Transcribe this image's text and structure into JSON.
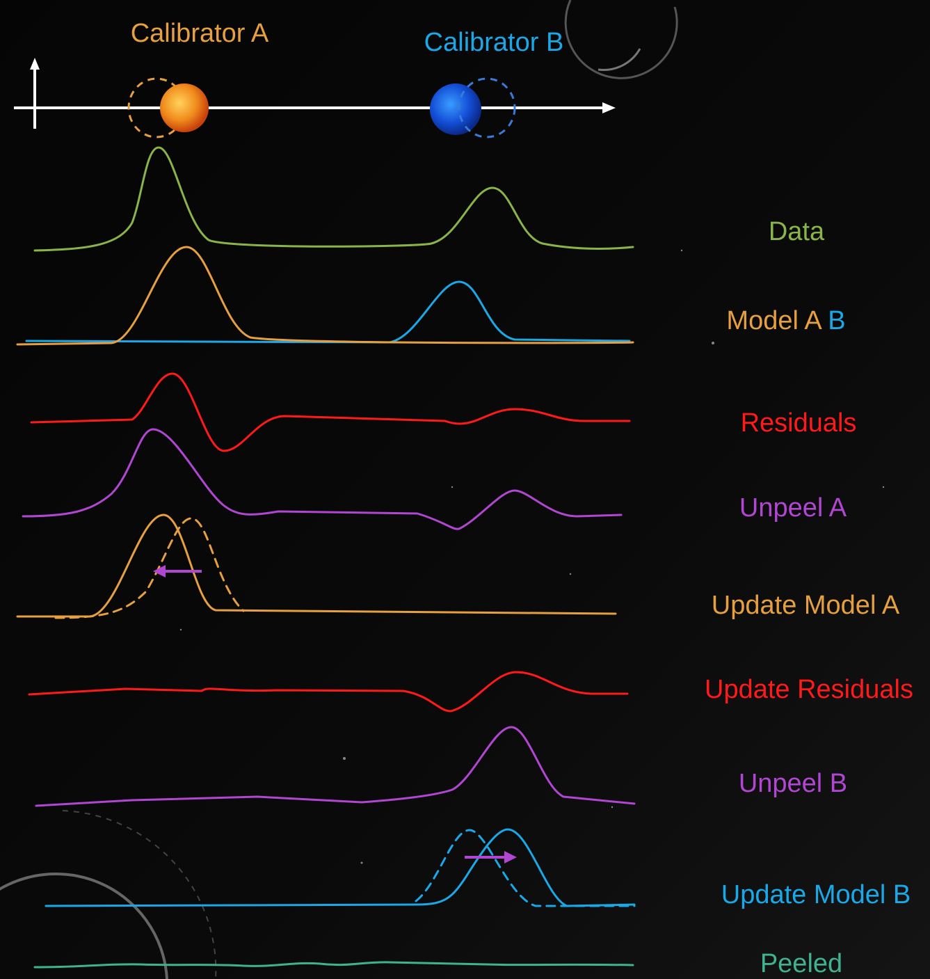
{
  "calibrators": [
    "Calibrator A",
    "Calibrator B"
  ],
  "rows": [
    {
      "label": "Data"
    },
    {
      "label": [
        "Model A",
        "B"
      ]
    },
    {
      "label": "Residuals"
    },
    {
      "label": "Unpeel A"
    },
    {
      "label": "Update Model A"
    },
    {
      "label": "Update Residuals"
    },
    {
      "label": "Unpeel B"
    },
    {
      "label": "Update Model B"
    },
    {
      "label": "Peeled"
    }
  ]
}
